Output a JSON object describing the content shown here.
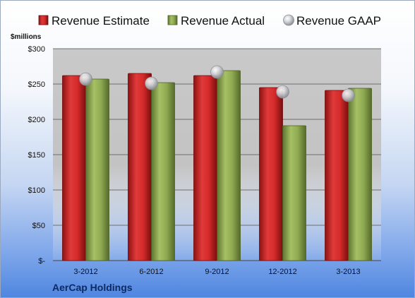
{
  "company": "AerCap Holdings",
  "chart_data": {
    "type": "bar",
    "units_label": "$millions",
    "categories": [
      "3-2012",
      "6-2012",
      "9-2012",
      "12-2012",
      "3-2013"
    ],
    "series": [
      {
        "name": "Revenue Estimate",
        "kind": "bar",
        "color": "#d42a2a",
        "values": [
          262,
          265,
          262,
          245,
          241
        ]
      },
      {
        "name": "Revenue Actual",
        "kind": "bar",
        "color": "#8faa52",
        "values": [
          257,
          252,
          269,
          191,
          244
        ]
      },
      {
        "name": "Revenue GAAP",
        "kind": "marker",
        "color": "#b9bcc2",
        "values": [
          257,
          251,
          267,
          239,
          234
        ]
      }
    ],
    "yticks": [
      0,
      50,
      100,
      150,
      200,
      250,
      300
    ],
    "ytick_labels": [
      "$-",
      "$50",
      "$100",
      "$150",
      "$200",
      "$250",
      "$300"
    ],
    "ylim": [
      0,
      300
    ],
    "grid": true,
    "legend_position": "top"
  }
}
